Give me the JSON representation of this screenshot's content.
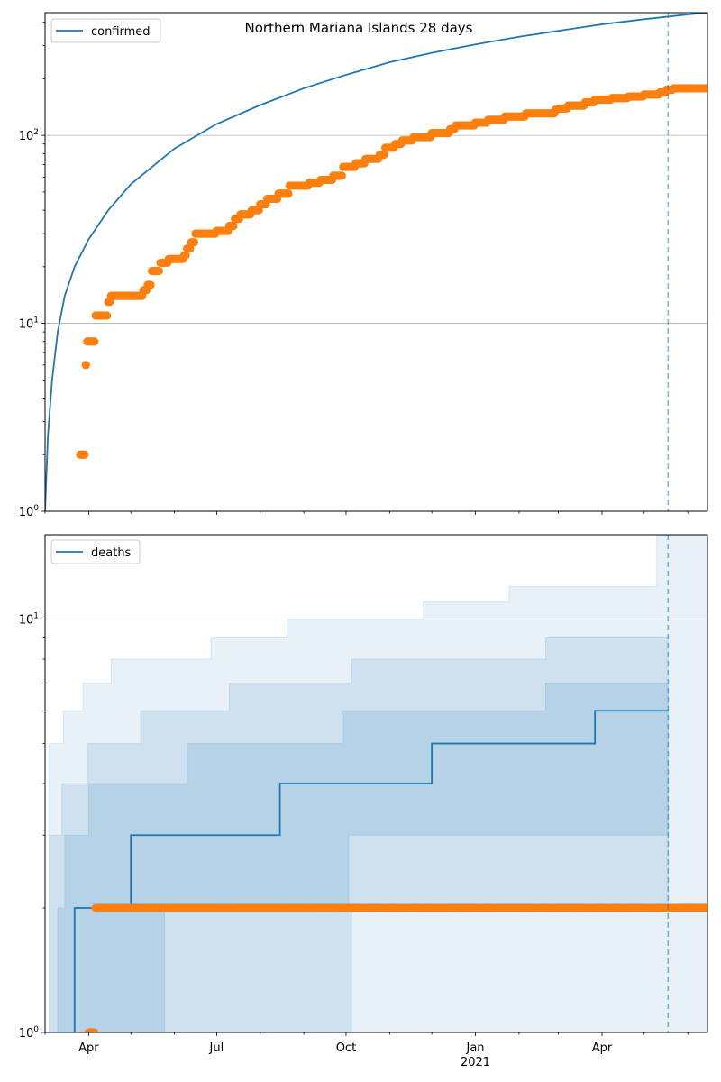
{
  "figure": {
    "title": "Northern Mariana Islands 28 days"
  },
  "colors": {
    "model": "#1f77b4",
    "observed": "#ff7f0e",
    "band": "#1f77b4",
    "grid": "#b0b0b0",
    "forecast_line": "#1f77b4"
  },
  "chart_data": [
    {
      "type": "line",
      "panel": "confirmed",
      "legend": [
        "confirmed"
      ],
      "legend_position": "top-left",
      "yscale": "log",
      "ylim": [
        1,
        450
      ],
      "xlim": [
        "2020-03-01",
        "2021-06-15"
      ],
      "grid_y_major": true,
      "yticks": [
        {
          "value": 1,
          "label": "10^0"
        },
        {
          "value": 10,
          "label": "10^1"
        },
        {
          "value": 100,
          "label": "10^2"
        }
      ],
      "forecast_start": "2021-05-18",
      "series": [
        {
          "name": "confirmed",
          "style": "line",
          "points": [
            [
              "2020-03-01",
              1
            ],
            [
              "2020-03-03",
              2.5
            ],
            [
              "2020-03-06",
              5
            ],
            [
              "2020-03-10",
              9
            ],
            [
              "2020-03-15",
              14
            ],
            [
              "2020-03-22",
              20
            ],
            [
              "2020-04-01",
              28
            ],
            [
              "2020-04-15",
              40
            ],
            [
              "2020-05-01",
              55
            ],
            [
              "2020-06-01",
              85
            ],
            [
              "2020-07-01",
              115
            ],
            [
              "2020-08-01",
              145
            ],
            [
              "2020-09-01",
              178
            ],
            [
              "2020-10-01",
              210
            ],
            [
              "2020-11-01",
              245
            ],
            [
              "2020-12-01",
              275
            ],
            [
              "2021-01-01",
              305
            ],
            [
              "2021-02-01",
              335
            ],
            [
              "2021-03-01",
              360
            ],
            [
              "2021-04-01",
              390
            ],
            [
              "2021-05-01",
              415
            ],
            [
              "2021-06-01",
              440
            ],
            [
              "2021-06-15",
              450
            ]
          ]
        },
        {
          "name": "observed",
          "style": "markers",
          "steps": [
            [
              "2020-03-26",
              2
            ],
            [
              "2020-03-30",
              6
            ],
            [
              "2020-03-31",
              8
            ],
            [
              "2020-04-06",
              11
            ],
            [
              "2020-04-15",
              13
            ],
            [
              "2020-04-17",
              14
            ],
            [
              "2020-05-10",
              15
            ],
            [
              "2020-05-13",
              16
            ],
            [
              "2020-05-16",
              19
            ],
            [
              "2020-05-22",
              21
            ],
            [
              "2020-05-28",
              22
            ],
            [
              "2020-06-08",
              23
            ],
            [
              "2020-06-10",
              25
            ],
            [
              "2020-06-13",
              27
            ],
            [
              "2020-06-16",
              30
            ],
            [
              "2020-07-01",
              31
            ],
            [
              "2020-07-10",
              33
            ],
            [
              "2020-07-14",
              36
            ],
            [
              "2020-07-18",
              38
            ],
            [
              "2020-07-26",
              40
            ],
            [
              "2020-08-01",
              43
            ],
            [
              "2020-08-06",
              46
            ],
            [
              "2020-08-14",
              49
            ],
            [
              "2020-08-22",
              54
            ],
            [
              "2020-09-05",
              56
            ],
            [
              "2020-09-13",
              58
            ],
            [
              "2020-09-22",
              61
            ],
            [
              "2020-09-29",
              68
            ],
            [
              "2020-10-08",
              71
            ],
            [
              "2020-10-15",
              75
            ],
            [
              "2020-10-25",
              79
            ],
            [
              "2020-10-29",
              86
            ],
            [
              "2020-11-05",
              90
            ],
            [
              "2020-11-10",
              94
            ],
            [
              "2020-11-18",
              98
            ],
            [
              "2020-12-01",
              103
            ],
            [
              "2020-12-14",
              108
            ],
            [
              "2020-12-18",
              113
            ],
            [
              "2021-01-01",
              117
            ],
            [
              "2021-01-10",
              121
            ],
            [
              "2021-01-22",
              126
            ],
            [
              "2021-02-06",
              131
            ],
            [
              "2021-02-27",
              137
            ],
            [
              "2021-03-01",
              139
            ],
            [
              "2021-03-08",
              144
            ],
            [
              "2021-03-20",
              150
            ],
            [
              "2021-03-27",
              155
            ],
            [
              "2021-04-08",
              158
            ],
            [
              "2021-04-20",
              161
            ],
            [
              "2021-05-01",
              165
            ],
            [
              "2021-05-12",
              169
            ],
            [
              "2021-05-17",
              175
            ],
            [
              "2021-05-22",
              178
            ],
            [
              "2021-06-15",
              178
            ]
          ]
        }
      ]
    },
    {
      "type": "line",
      "panel": "deaths",
      "legend": [
        "deaths"
      ],
      "legend_position": "top-left",
      "yscale": "log",
      "ylim": [
        1,
        16
      ],
      "xlim": [
        "2020-03-01",
        "2021-06-15"
      ],
      "grid_y_major": true,
      "yticks": [
        {
          "value": 1,
          "label": "10^0"
        },
        {
          "value": 10,
          "label": "10^1"
        }
      ],
      "forecast_start": "2021-05-18",
      "xticks": [
        "Apr",
        "Jul",
        "Oct",
        "Jan",
        "Apr"
      ],
      "xtick_dates": [
        "2020-04-01",
        "2020-07-01",
        "2020-10-01",
        "2021-01-01",
        "2021-04-01"
      ],
      "year_label": "2021",
      "year_date": "2021-01-01",
      "series": [
        {
          "name": "deaths",
          "style": "step",
          "points": [
            [
              "2020-03-01",
              1
            ],
            [
              "2020-03-22",
              1
            ],
            [
              "2020-03-22",
              2
            ],
            [
              "2020-05-01",
              2
            ],
            [
              "2020-05-01",
              3
            ],
            [
              "2020-08-15",
              3
            ],
            [
              "2020-08-15",
              4
            ],
            [
              "2020-12-01",
              4
            ],
            [
              "2020-12-01",
              5
            ],
            [
              "2021-03-27",
              5
            ],
            [
              "2021-03-27",
              6
            ],
            [
              "2021-05-18",
              6
            ]
          ]
        },
        {
          "name": "observed",
          "style": "markers",
          "steps": [
            [
              "2020-04-01",
              1
            ],
            [
              "2020-04-06",
              2
            ],
            [
              "2021-06-15",
              2
            ]
          ]
        }
      ],
      "bands": [
        {
          "level": "outer",
          "opacity": 0.1,
          "upper": [
            [
              "2020-03-04",
              5
            ],
            [
              "2020-03-14",
              6
            ],
            [
              "2020-03-28",
              7
            ],
            [
              "2020-04-17",
              8
            ],
            [
              "2020-06-27",
              9
            ],
            [
              "2020-08-20",
              10
            ],
            [
              "2020-11-25",
              11
            ],
            [
              "2021-01-25",
              12
            ],
            [
              "2021-05-10",
              16
            ],
            [
              "2021-06-15",
              16
            ]
          ],
          "lower": [
            [
              "2020-03-04",
              1
            ],
            [
              "2021-03-25",
              1
            ],
            [
              "2021-03-25",
              1
            ],
            [
              "2021-06-15",
              1
            ]
          ]
        },
        {
          "level": "middle",
          "opacity": 0.12,
          "upper": [
            [
              "2020-03-04",
              3
            ],
            [
              "2020-03-13",
              4
            ],
            [
              "2020-03-31",
              5
            ],
            [
              "2020-05-08",
              6
            ],
            [
              "2020-07-10",
              7
            ],
            [
              "2020-10-05",
              8
            ],
            [
              "2021-02-20",
              9
            ],
            [
              "2021-05-18",
              9
            ]
          ],
          "lower": [
            [
              "2020-03-04",
              1
            ],
            [
              "2020-10-05",
              1
            ],
            [
              "2020-10-05",
              2
            ],
            [
              "2021-02-25",
              2
            ],
            [
              "2021-05-18",
              2
            ]
          ]
        },
        {
          "level": "inner",
          "opacity": 0.14,
          "upper": [
            [
              "2020-03-10",
              2
            ],
            [
              "2020-03-15",
              3
            ],
            [
              "2020-04-01",
              4
            ],
            [
              "2020-06-10",
              5
            ],
            [
              "2020-09-28",
              6
            ],
            [
              "2021-02-20",
              7
            ],
            [
              "2021-05-18",
              7
            ]
          ],
          "lower": [
            [
              "2020-03-10",
              1
            ],
            [
              "2020-05-25",
              1
            ],
            [
              "2020-05-25",
              2
            ],
            [
              "2020-10-03",
              2
            ],
            [
              "2020-10-03",
              3
            ],
            [
              "2021-05-18",
              3
            ]
          ]
        }
      ]
    }
  ]
}
